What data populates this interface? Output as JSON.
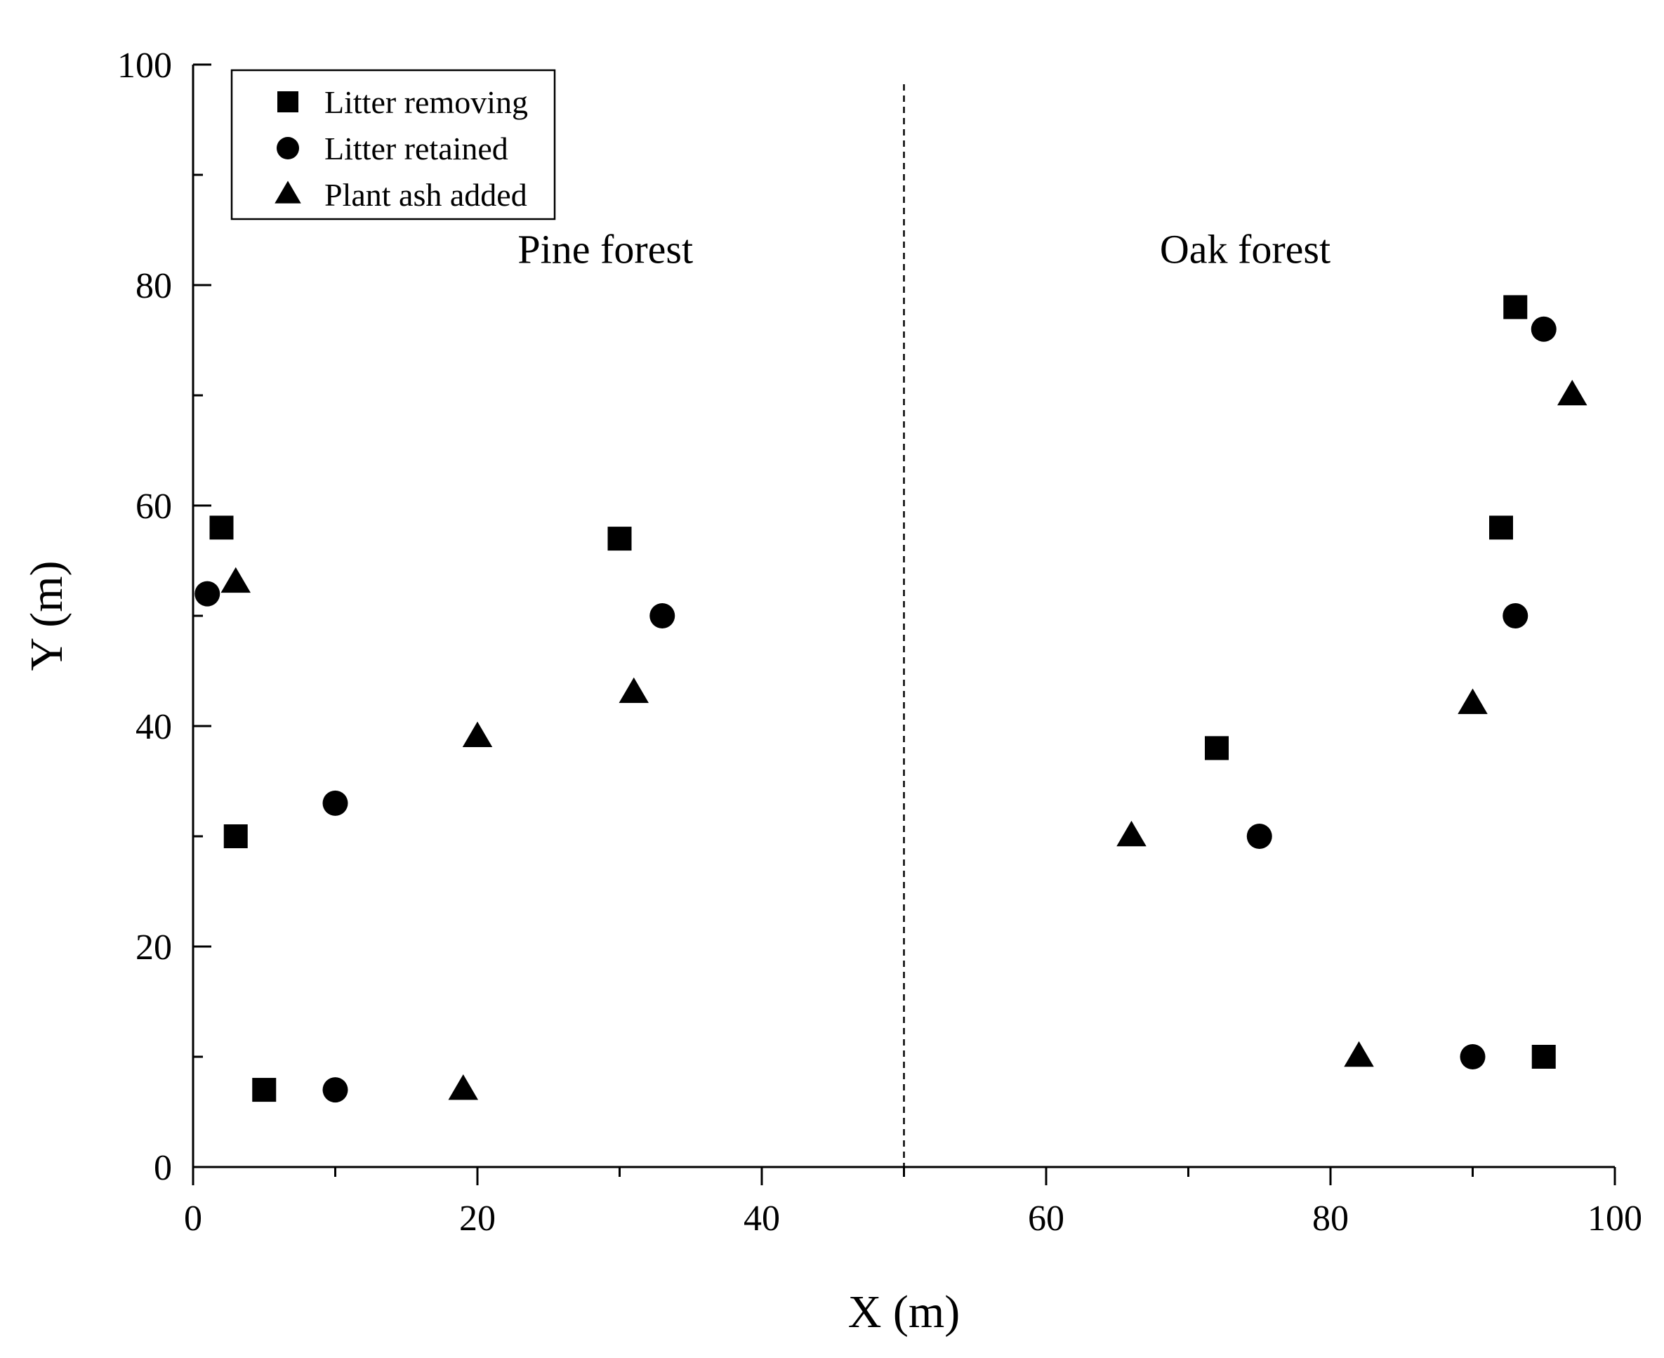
{
  "chart_data": {
    "type": "scatter",
    "xlabel": "X (m)",
    "ylabel": "Y (m)",
    "xlim": [
      0,
      100
    ],
    "ylim": [
      0,
      100
    ],
    "x_ticks": [
      0,
      20,
      40,
      60,
      80,
      100
    ],
    "y_ticks": [
      0,
      20,
      40,
      60,
      80,
      100
    ],
    "grid": false,
    "legend_position": "top-left",
    "divider_x": 50,
    "annotations": [
      {
        "text": "Pine forest",
        "x": 29,
        "y": 82
      },
      {
        "text": "Oak forest",
        "x": 74,
        "y": 82
      }
    ],
    "series": [
      {
        "name": "Litter removing",
        "marker": "square",
        "points": [
          [
            2,
            58
          ],
          [
            3,
            30
          ],
          [
            5,
            7
          ],
          [
            30,
            57
          ],
          [
            72,
            38
          ],
          [
            92,
            58
          ],
          [
            93,
            78
          ],
          [
            95,
            10
          ]
        ]
      },
      {
        "name": "Litter retained",
        "marker": "circle",
        "points": [
          [
            1,
            52
          ],
          [
            10,
            33
          ],
          [
            10,
            7
          ],
          [
            33,
            50
          ],
          [
            75,
            30
          ],
          [
            90,
            10
          ],
          [
            93,
            50
          ],
          [
            95,
            76
          ]
        ]
      },
      {
        "name": "Plant ash added",
        "marker": "triangle",
        "points": [
          [
            3,
            53
          ],
          [
            20,
            39
          ],
          [
            19,
            7
          ],
          [
            31,
            43
          ],
          [
            66,
            30
          ],
          [
            82,
            10
          ],
          [
            90,
            42
          ],
          [
            97,
            70
          ]
        ]
      }
    ]
  }
}
